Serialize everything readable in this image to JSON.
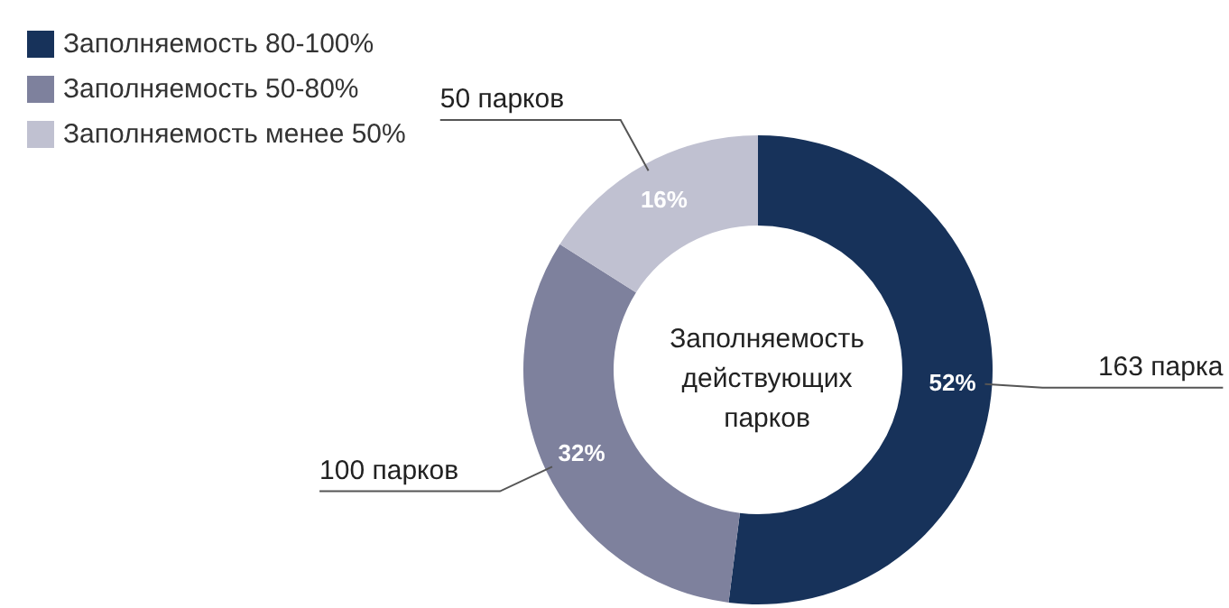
{
  "chart_data": {
    "type": "donut",
    "title": "Заполняемость действующих парков",
    "categories": [
      "Заполняемость 80-100%",
      "Заполняемость 50-80%",
      "Заполняемость менее 50%"
    ],
    "values": [
      52,
      32,
      16
    ],
    "colors": [
      "#17325a",
      "#7e819d",
      "#c0c1d1"
    ],
    "value_labels": [
      "52%",
      "32%",
      "16%"
    ],
    "annotations": [
      "163 парка",
      "100 парков",
      "50 парков"
    ],
    "legend": "top left"
  }
}
